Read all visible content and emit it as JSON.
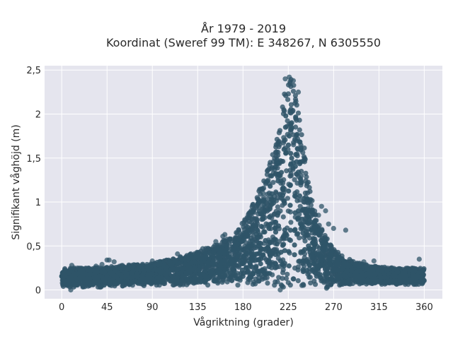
{
  "chart_data": {
    "type": "scatter",
    "title_line1": "År 1979 - 2019",
    "title_line2": "Koordinat (Sweref 99 TM): E 348267, N 6305550",
    "xlabel": "Vågriktning (grader)",
    "ylabel": "Signifikant våghöjd (m)",
    "xlim": [
      -17,
      378
    ],
    "ylim": [
      -0.1,
      2.55
    ],
    "x_ticks": [
      0,
      45,
      90,
      135,
      180,
      225,
      270,
      315,
      360
    ],
    "x_tick_labels": [
      "0",
      "45",
      "90",
      "135",
      "180",
      "225",
      "270",
      "315",
      "360"
    ],
    "y_ticks": [
      0,
      0.5,
      1,
      1.5,
      2,
      2.5
    ],
    "y_tick_labels": [
      "0",
      "0,5",
      "1",
      "1,5",
      "2",
      "2,5"
    ],
    "grid": true,
    "legend": "none",
    "marker_color": "#2f5468",
    "background_color": "#e5e5ee",
    "envelope": {
      "direction_deg": [
        0,
        20,
        45,
        60,
        90,
        110,
        130,
        150,
        170,
        185,
        195,
        205,
        213,
        218,
        222,
        225,
        228,
        232,
        237,
        242,
        250,
        258,
        265,
        275,
        290,
        310,
        330,
        345,
        360
      ],
      "height_upper_m": [
        0.25,
        0.25,
        0.26,
        0.28,
        0.3,
        0.36,
        0.42,
        0.5,
        0.62,
        0.85,
        1.1,
        1.4,
        1.7,
        2.0,
        2.3,
        2.4,
        2.4,
        2.3,
        2.0,
        1.5,
        0.95,
        0.7,
        0.55,
        0.42,
        0.32,
        0.27,
        0.25,
        0.25,
        0.25
      ],
      "height_lower_m": [
        0.03,
        0.03,
        0.03,
        0.04,
        0.05,
        0.05,
        0.05,
        0.05,
        0.05,
        0.05,
        0.05,
        0.04,
        0.03,
        0.02,
        0.02,
        0.02,
        0.02,
        0.02,
        0.02,
        0.02,
        0.02,
        0.03,
        0.03,
        0.04,
        0.05,
        0.06,
        0.06,
        0.06,
        0.06
      ]
    },
    "outliers": [
      {
        "x": 90,
        "y": 0.33
      },
      {
        "x": 115,
        "y": 0.41
      },
      {
        "x": 118,
        "y": 0.37
      },
      {
        "x": 140,
        "y": 0.47
      },
      {
        "x": 153,
        "y": 0.55
      },
      {
        "x": 160,
        "y": 0.61
      },
      {
        "x": 162,
        "y": 0.63
      },
      {
        "x": 190,
        "y": 0.9
      },
      {
        "x": 200,
        "y": 1.1
      },
      {
        "x": 205,
        "y": 1.25
      },
      {
        "x": 222,
        "y": 2.4
      },
      {
        "x": 226,
        "y": 2.42
      },
      {
        "x": 230,
        "y": 2.38
      },
      {
        "x": 235,
        "y": 2.25
      },
      {
        "x": 258,
        "y": 0.95
      },
      {
        "x": 262,
        "y": 0.9
      },
      {
        "x": 265,
        "y": 0.75
      },
      {
        "x": 270,
        "y": 0.7
      },
      {
        "x": 282,
        "y": 0.68
      },
      {
        "x": 255,
        "y": 0.85
      },
      {
        "x": 300,
        "y": 0.32
      },
      {
        "x": 310,
        "y": 0.33
      },
      {
        "x": 355,
        "y": 0.35
      },
      {
        "x": 45,
        "y": 0.34
      },
      {
        "x": 47,
        "y": 0.34
      },
      {
        "x": 52,
        "y": 0.32
      },
      {
        "x": 34,
        "y": 0.27
      },
      {
        "x": 10,
        "y": 0.28
      },
      {
        "x": 40,
        "y": 0.29
      },
      {
        "x": 97,
        "y": 0.32
      },
      {
        "x": 9,
        "y": 0.0
      },
      {
        "x": 217,
        "y": 0.0
      },
      {
        "x": 263,
        "y": 0.02
      },
      {
        "x": 358,
        "y": 0.07
      }
    ]
  }
}
